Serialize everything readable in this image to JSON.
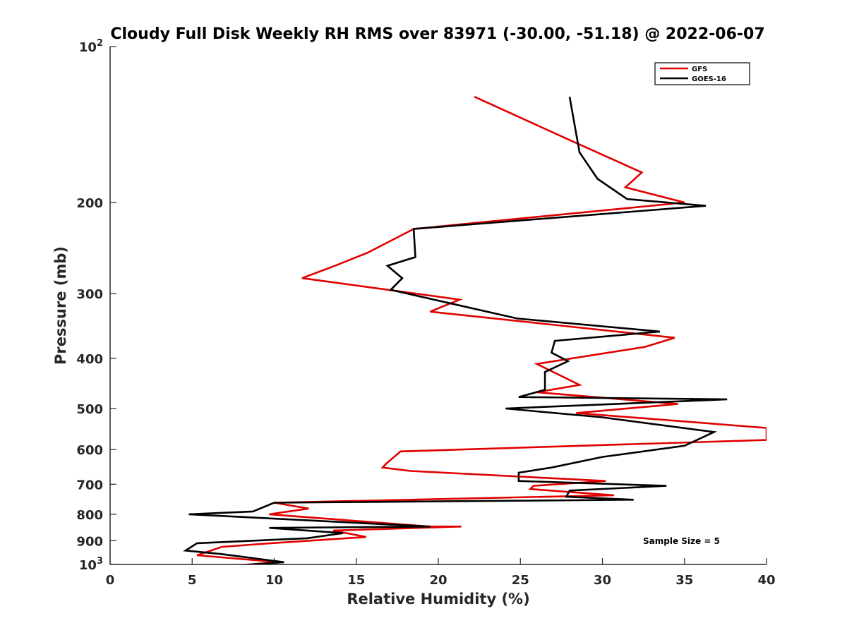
{
  "colors": {
    "gfs": "#e00000",
    "goes": "#000000",
    "axis": "#262626"
  },
  "chart_data": {
    "type": "line",
    "title": "Cloudy Full Disk Weekly RH RMS over 83971 (-30.00, -51.18) @ 2022-06-07",
    "xlabel": "Relative Humidity (%)",
    "ylabel": "Pressure (mb)",
    "xlim": [
      0,
      40
    ],
    "ylim": [
      100,
      1000
    ],
    "y_scale": "log",
    "y_reversed": true,
    "grid": false,
    "legend_position": "top-right",
    "x_ticks": [
      0,
      5,
      10,
      15,
      20,
      25,
      30,
      35,
      40
    ],
    "x_tick_labels": [
      "0",
      "5",
      "10",
      "15",
      "20",
      "25",
      "30",
      "35",
      "40"
    ],
    "y_ticks": [
      {
        "value": 100,
        "base": "10",
        "exp": "2"
      },
      {
        "value": 200,
        "base": "200",
        "exp": ""
      },
      {
        "value": 300,
        "base": "300",
        "exp": ""
      },
      {
        "value": 400,
        "base": "400",
        "exp": ""
      },
      {
        "value": 500,
        "base": "500",
        "exp": ""
      },
      {
        "value": 600,
        "base": "600",
        "exp": ""
      },
      {
        "value": 700,
        "base": "700",
        "exp": ""
      },
      {
        "value": 800,
        "base": "800",
        "exp": ""
      },
      {
        "value": 900,
        "base": "900",
        "exp": ""
      },
      {
        "value": 1000,
        "base": "10",
        "exp": "3"
      }
    ],
    "annotation": "Sample Size = 5",
    "series": [
      {
        "name": "GFS",
        "color": "#e00000",
        "points": [
          [
            22.2,
            125
          ],
          [
            27.7,
            150
          ],
          [
            32.4,
            175
          ],
          [
            31.4,
            187
          ],
          [
            35.0,
            200
          ],
          [
            18.5,
            225
          ],
          [
            15.7,
            250
          ],
          [
            13.7,
            265
          ],
          [
            11.7,
            280
          ],
          [
            21.3,
            308
          ],
          [
            19.5,
            325
          ],
          [
            34.4,
            365
          ],
          [
            32.6,
            380
          ],
          [
            26.0,
            410
          ],
          [
            28.6,
            450
          ],
          [
            26.0,
            465
          ],
          [
            34.6,
            490
          ],
          [
            28.4,
            510
          ],
          [
            40.0,
            545
          ],
          [
            40.0,
            575
          ],
          [
            17.7,
            605
          ],
          [
            16.8,
            640
          ],
          [
            16.6,
            650
          ],
          [
            18.3,
            660
          ],
          [
            30.2,
            690
          ],
          [
            25.8,
            705
          ],
          [
            25.6,
            715
          ],
          [
            30.7,
            735
          ],
          [
            10.0,
            760
          ],
          [
            12.1,
            780
          ],
          [
            9.7,
            800
          ],
          [
            19.5,
            845
          ],
          [
            21.4,
            845
          ],
          [
            13.6,
            860
          ],
          [
            15.6,
            885
          ],
          [
            9.8,
            910
          ],
          [
            6.8,
            925
          ],
          [
            5.3,
            960
          ],
          [
            10.3,
            990
          ],
          [
            7.6,
            1005
          ]
        ]
      },
      {
        "name": "GOES-16",
        "color": "#000000",
        "points": [
          [
            28.0,
            125
          ],
          [
            28.6,
            160
          ],
          [
            29.7,
            180
          ],
          [
            31.5,
            197
          ],
          [
            36.3,
            203
          ],
          [
            18.5,
            225
          ],
          [
            18.6,
            255
          ],
          [
            16.9,
            265
          ],
          [
            17.8,
            280
          ],
          [
            17.1,
            295
          ],
          [
            24.8,
            335
          ],
          [
            33.5,
            355
          ],
          [
            27.1,
            370
          ],
          [
            26.9,
            390
          ],
          [
            27.9,
            405
          ],
          [
            26.5,
            425
          ],
          [
            26.5,
            460
          ],
          [
            24.9,
            475
          ],
          [
            37.6,
            480
          ],
          [
            24.1,
            500
          ],
          [
            30.0,
            520
          ],
          [
            36.8,
            555
          ],
          [
            35.0,
            590
          ],
          [
            30.0,
            620
          ],
          [
            26.9,
            650
          ],
          [
            24.9,
            665
          ],
          [
            24.9,
            690
          ],
          [
            33.9,
            705
          ],
          [
            28.0,
            720
          ],
          [
            27.8,
            740
          ],
          [
            31.9,
            750
          ],
          [
            10.0,
            760
          ],
          [
            8.7,
            790
          ],
          [
            4.8,
            800
          ],
          [
            19.5,
            845
          ],
          [
            9.7,
            850
          ],
          [
            14.2,
            870
          ],
          [
            12.0,
            890
          ],
          [
            5.3,
            910
          ],
          [
            4.6,
            940
          ],
          [
            6.8,
            955
          ],
          [
            10.6,
            990
          ],
          [
            7.6,
            1005
          ]
        ]
      }
    ]
  }
}
